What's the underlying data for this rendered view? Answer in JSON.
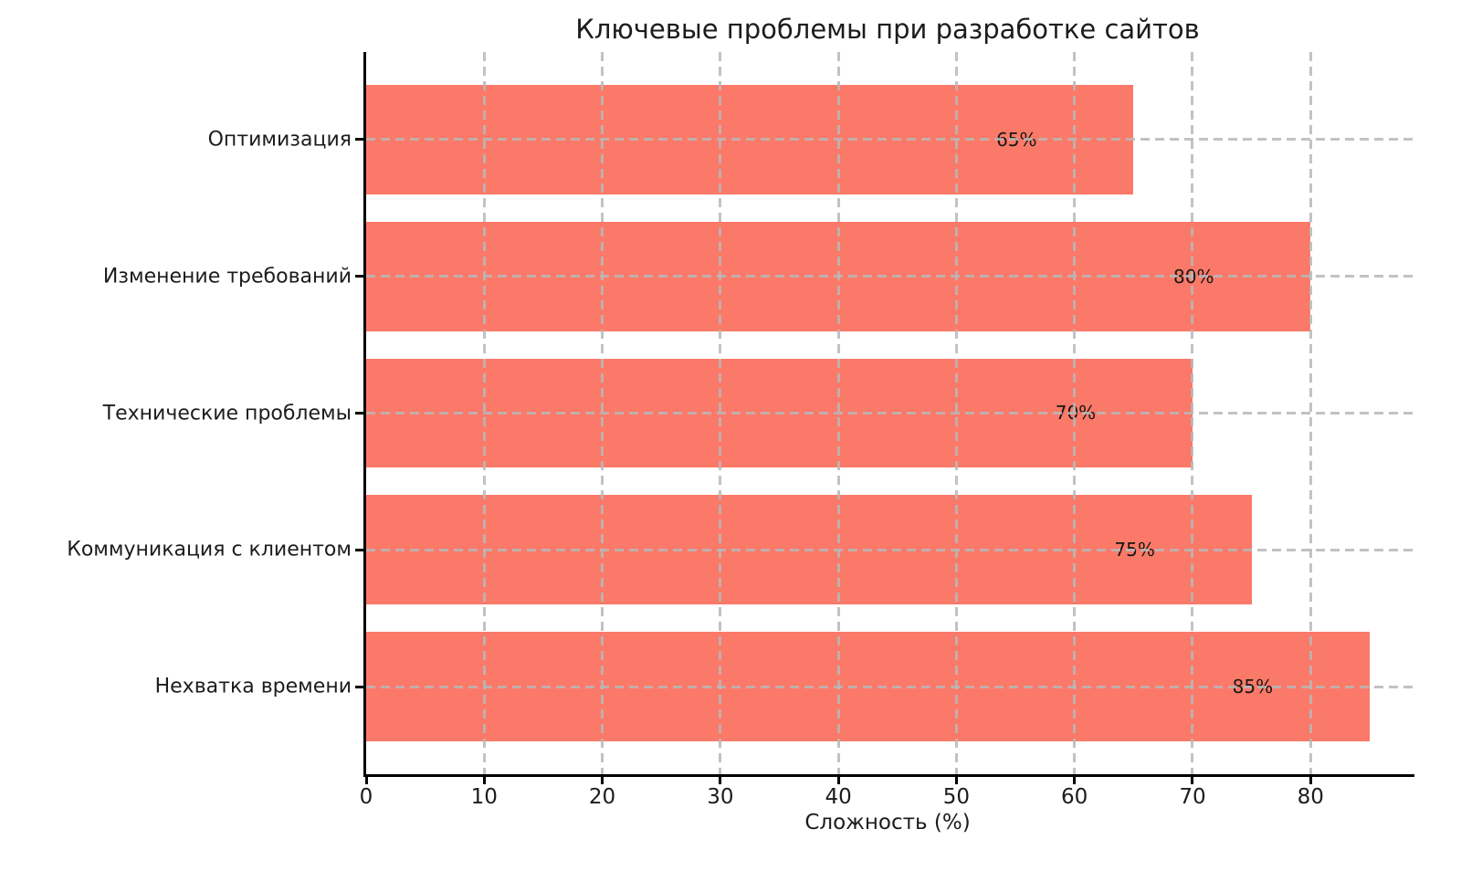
{
  "chart_data": {
    "type": "bar",
    "orientation": "horizontal",
    "title": "Ключевые проблемы при разработке сайтов",
    "xlabel": "Сложность (%)",
    "categories": [
      "Оптимизация",
      "Изменение требований",
      "Технические проблемы",
      "Коммуникация с клиентом",
      "Нехватка времени"
    ],
    "values": [
      65,
      80,
      70,
      75,
      85
    ],
    "value_labels": [
      "65%",
      "80%",
      "70%",
      "75%",
      "85%"
    ],
    "xticks": [
      0,
      10,
      20,
      30,
      40,
      50,
      60,
      70,
      80
    ],
    "xlim": [
      0,
      88.8
    ],
    "bar_color": "#FB7968",
    "grid": true,
    "grid_style": "dashed",
    "grid_color": "#b8b8b8",
    "axis_color": "#000000",
    "text_color": "#1c1c1c",
    "legend": "none"
  }
}
